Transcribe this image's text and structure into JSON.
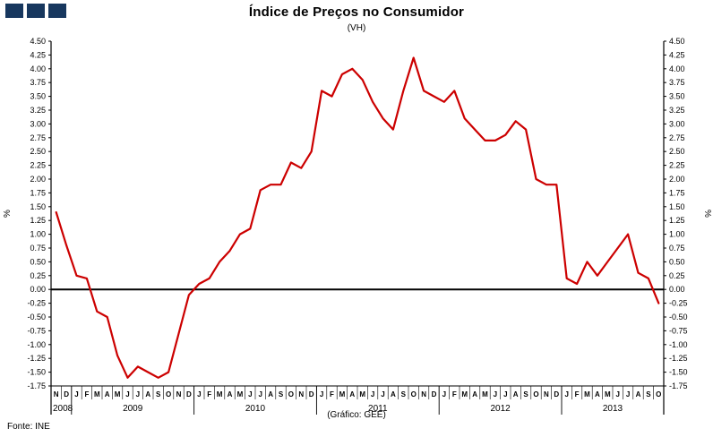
{
  "header": {
    "title": "Índice de Preços no Consumidor",
    "subtitle": "(VH)"
  },
  "footer": {
    "source": "Fonte:  INE",
    "credit": "(Gráfico: GEE)"
  },
  "logo": {
    "color": "#17375E",
    "count": 3
  },
  "chart_data": {
    "type": "line",
    "title": "Índice de Preços no Consumidor",
    "subtitle": "(VH)",
    "ylabel": "%",
    "ylabel_right": "%",
    "ylim": [
      -1.75,
      4.5
    ],
    "ytick_step": 0.25,
    "grid": false,
    "line_color": "#cc0000",
    "axis_color": "#000000",
    "x_month_labels": [
      "N",
      "D",
      "J",
      "F",
      "M",
      "A",
      "M",
      "J",
      "J",
      "A",
      "S",
      "O",
      "N",
      "D",
      "J",
      "F",
      "M",
      "A",
      "M",
      "J",
      "J",
      "A",
      "S",
      "O",
      "N",
      "D",
      "J",
      "F",
      "M",
      "A",
      "M",
      "J",
      "J",
      "A",
      "S",
      "O",
      "N",
      "D",
      "J",
      "F",
      "M",
      "A",
      "M",
      "J",
      "J",
      "A",
      "S",
      "O",
      "N",
      "D",
      "J",
      "F",
      "M",
      "A",
      "M",
      "J",
      "J",
      "A",
      "S",
      "O"
    ],
    "year_groups": [
      {
        "label": "2008",
        "months": 2
      },
      {
        "label": "2009",
        "months": 12
      },
      {
        "label": "2010",
        "months": 12
      },
      {
        "label": "2011",
        "months": 12
      },
      {
        "label": "2012",
        "months": 12
      },
      {
        "label": "2013",
        "months": 10
      }
    ],
    "values": [
      1.4,
      0.8,
      0.25,
      0.2,
      -0.4,
      -0.5,
      -1.2,
      -1.6,
      -1.4,
      -1.5,
      -1.6,
      -1.5,
      -0.8,
      -0.1,
      0.1,
      0.2,
      0.5,
      0.7,
      1.0,
      1.1,
      1.8,
      1.9,
      1.9,
      2.3,
      2.2,
      2.5,
      3.6,
      3.5,
      3.9,
      4.0,
      3.8,
      3.4,
      3.1,
      2.9,
      3.6,
      4.2,
      3.6,
      3.5,
      3.4,
      3.6,
      3.1,
      2.9,
      2.7,
      2.7,
      2.8,
      3.05,
      2.9,
      2.0,
      1.9,
      1.9,
      0.2,
      0.1,
      0.5,
      0.25,
      0.5,
      0.75,
      1.0,
      0.3,
      0.2,
      -0.25
    ]
  }
}
